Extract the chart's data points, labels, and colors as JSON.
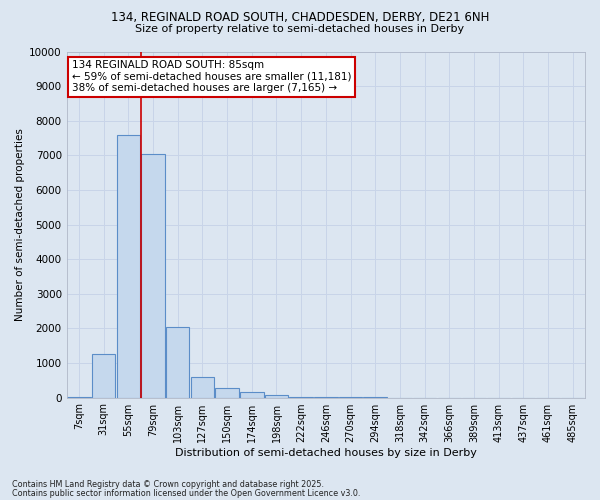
{
  "title1": "134, REGINALD ROAD SOUTH, CHADDESDEN, DERBY, DE21 6NH",
  "title2": "Size of property relative to semi-detached houses in Derby",
  "xlabel": "Distribution of semi-detached houses by size in Derby",
  "ylabel": "Number of semi-detached properties",
  "categories": [
    "7sqm",
    "31sqm",
    "55sqm",
    "79sqm",
    "103sqm",
    "127sqm",
    "150sqm",
    "174sqm",
    "198sqm",
    "222sqm",
    "246sqm",
    "270sqm",
    "294sqm",
    "318sqm",
    "342sqm",
    "366sqm",
    "389sqm",
    "413sqm",
    "437sqm",
    "461sqm",
    "485sqm"
  ],
  "values": [
    20,
    1250,
    7600,
    7050,
    2050,
    600,
    270,
    150,
    80,
    30,
    10,
    5,
    3,
    2,
    1,
    1,
    1,
    0,
    0,
    0,
    0
  ],
  "bar_color": "#c5d8ed",
  "bar_edge_color": "#5b8dc8",
  "red_line_x": 2.5,
  "annotation_text": "134 REGINALD ROAD SOUTH: 85sqm\n← 59% of semi-detached houses are smaller (11,181)\n38% of semi-detached houses are larger (7,165) →",
  "annotation_box_color": "#ffffff",
  "annotation_border_color": "#cc0000",
  "ylim": [
    0,
    10000
  ],
  "yticks": [
    0,
    1000,
    2000,
    3000,
    4000,
    5000,
    6000,
    7000,
    8000,
    9000,
    10000
  ],
  "grid_color": "#c8d4e8",
  "bg_color": "#dce6f1",
  "footer1": "Contains HM Land Registry data © Crown copyright and database right 2025.",
  "footer2": "Contains public sector information licensed under the Open Government Licence v3.0."
}
